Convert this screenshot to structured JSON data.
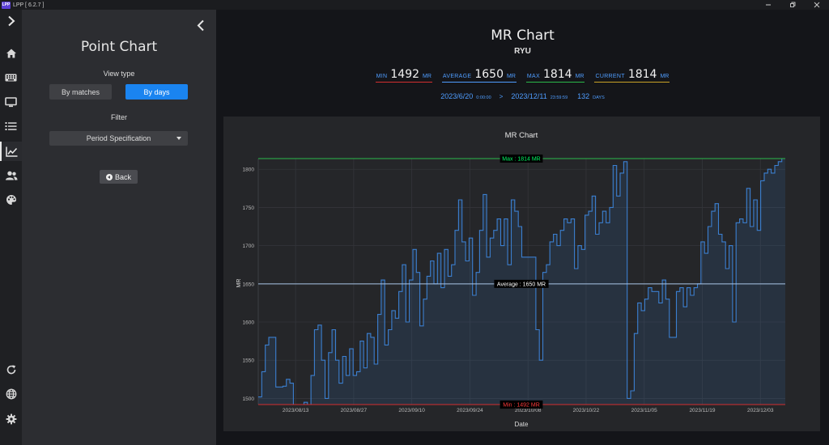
{
  "window": {
    "title": "LPP [ 6.2.7 ]",
    "logo_text": "LPP",
    "controls": [
      "minimize-icon",
      "restore-icon",
      "close-icon"
    ]
  },
  "iconbar": {
    "items": [
      "chevron-right-icon",
      "home-icon",
      "keyboard-icon",
      "monitor-icon",
      "list-icon",
      "line-chart-icon",
      "users-icon",
      "palette-icon"
    ],
    "bottom_items": [
      "refresh-icon",
      "globe-icon",
      "gear-icon"
    ],
    "active": "line-chart-icon"
  },
  "panel": {
    "title": "Point Chart",
    "view_type_label": "View type",
    "view_buttons": {
      "matches": "By matches",
      "days": "By days",
      "selected": "days"
    },
    "filter_label": "Filter",
    "filter_value": "Period Specification",
    "back_label": "Back"
  },
  "header": {
    "title": "MR Chart",
    "character": "RYU",
    "stats": {
      "min_label": "MIN",
      "min_value": "1492",
      "min_unit": "MR",
      "avg_label": "AVERAGE",
      "avg_value": "1650",
      "avg_unit": "MR",
      "max_label": "MAX",
      "max_value": "1814",
      "max_unit": "MR",
      "cur_label": "CURRENT",
      "cur_value": "1814",
      "cur_unit": "MR"
    },
    "range": {
      "start_date": "2023/6/20",
      "start_time": "0:00:00",
      "arrow": ">",
      "end_date": "2023/12/11",
      "end_time": "23:59:59",
      "days": "132",
      "days_unit": "DAYS"
    }
  },
  "colors": {
    "accent": "#1a84f0",
    "line": "#3b7fd0",
    "min": "#d32f2f",
    "max": "#2bb94a",
    "avg": "#a8c4e6"
  },
  "chart_data": {
    "type": "line",
    "title": "MR Chart",
    "xlabel": "Date",
    "ylabel": "MR",
    "ylim": [
      1492,
      1814
    ],
    "xlim": [
      "2023/08/04",
      "2023/12/09"
    ],
    "yticks": [
      1500,
      1550,
      1600,
      1650,
      1700,
      1750,
      1800
    ],
    "xticks": [
      "2023/08/13",
      "2023/08/27",
      "2023/09/10",
      "2023/09/24",
      "2023/10/08",
      "2023/10/22",
      "2023/11/05",
      "2023/11/19",
      "2023/12/03"
    ],
    "grid": true,
    "series": [
      {
        "values": [
          1502,
          1535,
          1570,
          1580,
          1580,
          1515,
          1515,
          1516,
          1525,
          1520,
          1492,
          1492,
          1492,
          1495,
          1492,
          1530,
          1590,
          1596,
          1550,
          1500,
          1560,
          1590,
          1550,
          1520,
          1555,
          1530,
          1565,
          1530,
          1535,
          1575,
          1540,
          1585,
          1580,
          1545,
          1610,
          1655,
          1570,
          1590,
          1615,
          1605,
          1640,
          1675,
          1600,
          1655,
          1695,
          1665,
          1595,
          1630,
          1660,
          1680,
          1650,
          1690,
          1645,
          1695,
          1660,
          1675,
          1720,
          1760,
          1705,
          1680,
          1710,
          1635,
          1665,
          1720,
          1767,
          1685,
          1710,
          1720,
          1735,
          1700,
          1735,
          1675,
          1760,
          1745,
          1725,
          1685,
          1685,
          1685,
          1685,
          1590,
          1550,
          1665,
          1675,
          1705,
          1715,
          1700,
          1720,
          1735,
          1730,
          1735,
          1670,
          1700,
          1695,
          1740,
          1745,
          1765,
          1715,
          1730,
          1745,
          1730,
          1750,
          1805,
          1765,
          1795,
          1810,
          1500,
          1510,
          1585,
          1625,
          1615,
          1630,
          1645,
          1640,
          1640,
          1625,
          1655,
          1630,
          1580,
          1580,
          1640,
          1645,
          1620,
          1645,
          1635,
          1645,
          1650,
          1705,
          1690,
          1725,
          1745,
          1755,
          1715,
          1705,
          1670,
          1700,
          1600,
          1730,
          1735,
          1730,
          1775,
          1725,
          1760,
          1720,
          1785,
          1795,
          1800,
          1795,
          1805,
          1810,
          1814
        ]
      }
    ],
    "annotations": [
      {
        "label": "Max : 1814 MR",
        "value": 1814
      },
      {
        "label": "Average : 1650 MR",
        "value": 1650
      },
      {
        "label": "Min : 1492 MR",
        "value": 1492
      }
    ]
  }
}
